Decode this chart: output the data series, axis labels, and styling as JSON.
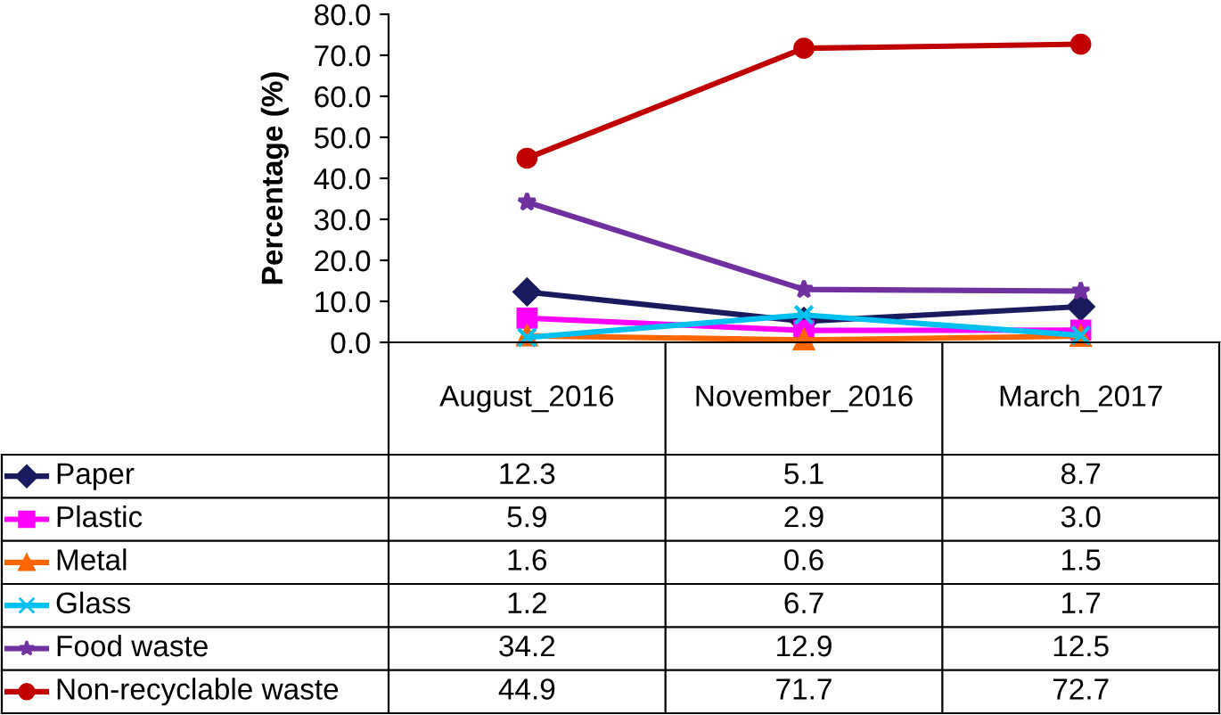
{
  "chart_data": {
    "type": "line",
    "ylabel": "Percentage (%)",
    "categories": [
      "August_2016",
      "November_2016",
      "March_2017"
    ],
    "series": [
      {
        "name": "Paper",
        "color": "#1a1a5e",
        "marker": "diamond",
        "values": [
          12.3,
          5.1,
          8.7
        ],
        "value_labels": [
          "12.3",
          "5.1",
          "8.7"
        ]
      },
      {
        "name": "Plastic",
        "color": "#ff00ff",
        "marker": "square",
        "values": [
          5.9,
          2.9,
          3.0
        ],
        "value_labels": [
          "5.9",
          "2.9",
          "3.0"
        ]
      },
      {
        "name": "Metal",
        "color": "#ff6600",
        "marker": "triangle",
        "values": [
          1.6,
          0.6,
          1.5
        ],
        "value_labels": [
          "1.6",
          "0.6",
          "1.5"
        ]
      },
      {
        "name": "Glass",
        "color": "#00c0f0",
        "marker": "cross",
        "values": [
          1.2,
          6.7,
          1.7
        ],
        "value_labels": [
          "1.2",
          "6.7",
          "1.7"
        ]
      },
      {
        "name": "Food waste",
        "color": "#7030a0",
        "marker": "star",
        "values": [
          34.2,
          12.9,
          12.5
        ],
        "value_labels": [
          "34.2",
          "12.9",
          "12.5"
        ]
      },
      {
        "name": "Non-recyclable waste",
        "color": "#c00000",
        "marker": "circle",
        "values": [
          44.9,
          71.7,
          72.7
        ],
        "value_labels": [
          "44.9",
          "71.7",
          "72.7"
        ]
      }
    ],
    "ylim": [
      0,
      80
    ],
    "yticks": [
      {
        "value": 0,
        "label": "0.0"
      },
      {
        "value": 10,
        "label": "10.0"
      },
      {
        "value": 20,
        "label": "20.0"
      },
      {
        "value": 30,
        "label": "30.0"
      },
      {
        "value": 40,
        "label": "40.0"
      },
      {
        "value": 50,
        "label": "50.0"
      },
      {
        "value": 60,
        "label": "60.0"
      },
      {
        "value": 70,
        "label": "70.0"
      },
      {
        "value": 80,
        "label": "80.0"
      }
    ],
    "grid": false,
    "legend": "bottom left",
    "line_style": "solid"
  }
}
